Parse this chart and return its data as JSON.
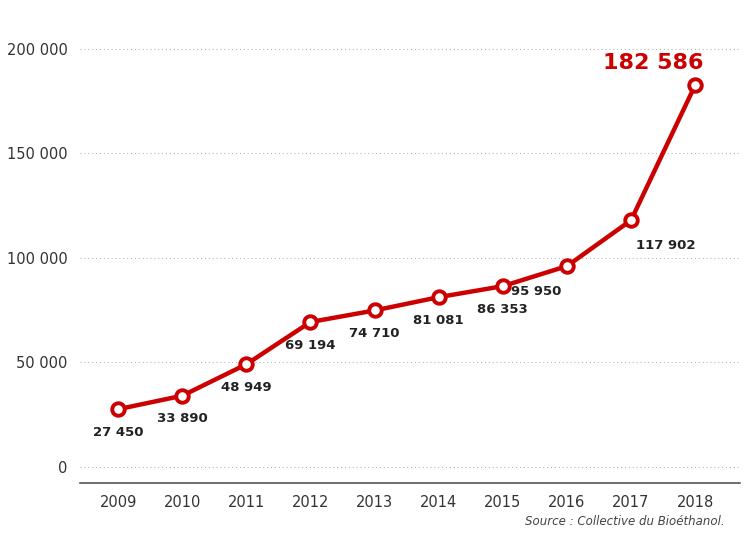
{
  "years": [
    2009,
    2010,
    2011,
    2012,
    2013,
    2014,
    2015,
    2016,
    2017,
    2018
  ],
  "values": [
    27450,
    33890,
    48949,
    69194,
    74710,
    81081,
    86353,
    95950,
    117902,
    182586
  ],
  "labels": [
    "27 450",
    "33 890",
    "48 949",
    "69 194",
    "74 710",
    "81 081",
    "86 353",
    "95 950",
    "117 902",
    "182 586"
  ],
  "line_color": "#cc0000",
  "marker_face": "#ffffff",
  "marker_edge": "#cc0000",
  "grid_color": "#aaaaaa",
  "background_color": "#ffffff",
  "source_text": "Source : Collective du Bioéthanol.",
  "yticks": [
    0,
    50000,
    100000,
    150000,
    200000
  ],
  "ytick_labels": [
    "0",
    "50 000",
    "100 000",
    "150 000",
    "200 000"
  ],
  "ylim": [
    -8000,
    220000
  ],
  "xlim": [
    2008.4,
    2018.7
  ]
}
